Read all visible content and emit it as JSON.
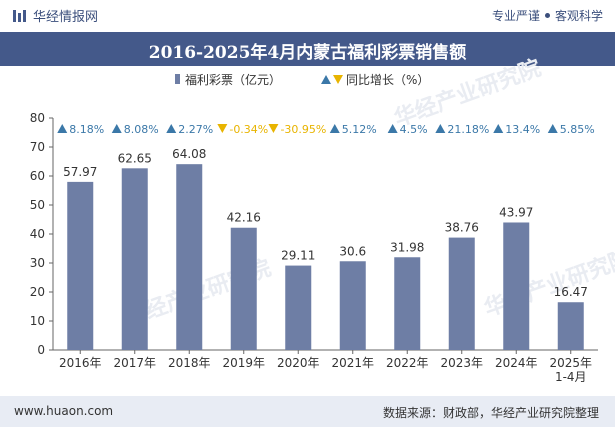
{
  "header": {
    "brand": "华经情报网",
    "tagline_left": "专业严谨",
    "tagline_right": "客观科学"
  },
  "footer": {
    "website": "www.huaon.com",
    "source": "数据来源：财政部，华经产业研究院整理"
  },
  "watermark": "华经产业研究院",
  "colors": {
    "bar": "#6e7ea5",
    "up": "#3b78a8",
    "down": "#e8b400",
    "title_bg": "#44598a",
    "footer_bg": "#e8ecf4"
  },
  "chart_data": {
    "type": "bar",
    "title": "2016-2025年4月内蒙古福利彩票销售额",
    "legend": {
      "bar_label": "福利彩票（亿元）",
      "line_label": "同比增长（%）",
      "position": "top-center"
    },
    "categories": [
      "2016年",
      "2017年",
      "2018年",
      "2019年",
      "2020年",
      "2021年",
      "2022年",
      "2023年",
      "2024年",
      "2025年\n1-4月"
    ],
    "values": [
      57.97,
      62.65,
      64.08,
      42.16,
      29.11,
      30.6,
      31.98,
      38.76,
      43.97,
      16.47
    ],
    "value_labels": [
      "57.97",
      "62.65",
      "64.08",
      "42.16",
      "29.11",
      "30.6",
      "31.98",
      "38.76",
      "43.97",
      "16.47"
    ],
    "growth": [
      8.18,
      8.08,
      2.27,
      -0.34,
      -30.95,
      5.12,
      4.5,
      21.18,
      13.4,
      5.85
    ],
    "growth_labels": [
      "8.18%",
      "8.08%",
      "2.27%",
      "-0.34%",
      "-30.95%",
      "5.12%",
      "4.5%",
      "21.18%",
      "13.4%",
      "5.85%"
    ],
    "ylim": [
      0,
      80
    ],
    "yticks": [
      0,
      10,
      20,
      30,
      40,
      50,
      60,
      70,
      80
    ],
    "xlabel": "",
    "ylabel": ""
  }
}
